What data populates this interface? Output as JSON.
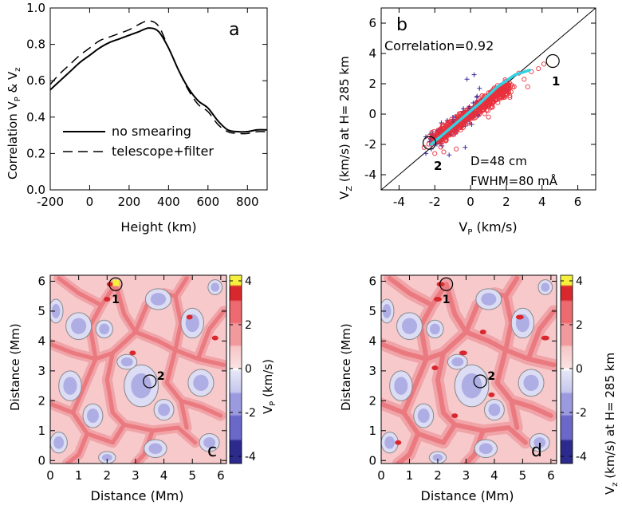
{
  "chart_data": [
    {
      "id": "a",
      "type": "line",
      "panel_label": "a",
      "xlabel": "Height (km)",
      "ylabel_main": "Correlation V",
      "ylabel_sub1": "P",
      "ylabel_mid": " & V",
      "ylabel_sub2": "z",
      "xlim": [
        -200,
        900
      ],
      "ylim": [
        0,
        1.0
      ],
      "xticks": [
        "-200",
        "0",
        "200",
        "400",
        "600",
        "800"
      ],
      "xtick_values": [
        -200,
        0,
        200,
        400,
        600,
        800
      ],
      "yticks": [
        "0.0",
        "0.2",
        "0.4",
        "0.6",
        "0.8",
        "1.0"
      ],
      "ytick_values": [
        0,
        0.2,
        0.4,
        0.6,
        0.8,
        1.0
      ],
      "series": [
        {
          "name": "no smearing",
          "style": "solid",
          "x": [
            -200,
            -150,
            -100,
            -50,
            0,
            50,
            100,
            150,
            200,
            250,
            300,
            350,
            400,
            450,
            500,
            550,
            600,
            650,
            700,
            750,
            800,
            850,
            900
          ],
          "y": [
            0.55,
            0.6,
            0.65,
            0.7,
            0.74,
            0.78,
            0.81,
            0.83,
            0.85,
            0.87,
            0.89,
            0.87,
            0.78,
            0.66,
            0.56,
            0.49,
            0.45,
            0.38,
            0.33,
            0.32,
            0.32,
            0.33,
            0.33
          ]
        },
        {
          "name": "telescope+filter",
          "style": "dashed",
          "x": [
            -200,
            -150,
            -100,
            -50,
            0,
            50,
            100,
            150,
            200,
            250,
            300,
            350,
            400,
            450,
            500,
            550,
            600,
            650,
            700,
            750,
            800,
            850,
            900
          ],
          "y": [
            0.58,
            0.64,
            0.69,
            0.74,
            0.78,
            0.82,
            0.84,
            0.86,
            0.88,
            0.91,
            0.93,
            0.9,
            0.78,
            0.66,
            0.55,
            0.47,
            0.43,
            0.36,
            0.32,
            0.31,
            0.31,
            0.32,
            0.32
          ]
        }
      ],
      "legend": [
        "no smearing",
        "telescope+filter"
      ]
    },
    {
      "id": "b",
      "type": "scatter",
      "panel_label": "b",
      "xlabel_main": "V",
      "xlabel_sub": "P",
      "xlabel_rest": " (km/s)",
      "ylabel_main": "V",
      "ylabel_sub": "Z",
      "ylabel_rest": " (km/s) at H= 285 km",
      "xlim": [
        -5,
        7
      ],
      "ylim": [
        -5,
        7
      ],
      "xticks": [
        "-4",
        "-2",
        "0",
        "2",
        "4",
        "6"
      ],
      "xtick_values": [
        -4,
        -2,
        0,
        2,
        4,
        6
      ],
      "yticks": [
        "-4",
        "-2",
        "0",
        "2",
        "4",
        "6"
      ],
      "ytick_values": [
        -4,
        -2,
        0,
        2,
        4,
        6
      ],
      "correlation_text": "Correlation=0.92",
      "d_text": "D=48 cm",
      "fwhm_text": "FWHM=80 mÅ",
      "points_1_label": "1",
      "points_2_label": "2",
      "marked_points": [
        {
          "label": "1",
          "x": 4.6,
          "y": 3.5
        },
        {
          "label": "2",
          "x": -2.3,
          "y": -1.9
        }
      ],
      "fit_line": {
        "x": [
          -2.2,
          -1.5,
          -0.5,
          0.5,
          1.5,
          2.5,
          3.3
        ],
        "y": [
          -2.0,
          -1.3,
          -0.3,
          0.7,
          1.8,
          2.6,
          2.9
        ]
      },
      "series": [
        {
          "name": "red circles",
          "color": "#e8303c"
        },
        {
          "name": "blue plus",
          "color": "#3a2a9a"
        }
      ],
      "diagonal": [
        [
          -5,
          -5
        ],
        [
          7,
          7
        ]
      ]
    },
    {
      "id": "c",
      "type": "heatmap",
      "panel_label": "c",
      "xlabel": "Distance (Mm)",
      "ylabel": "Distance (Mm)",
      "xlim": [
        0,
        6.2
      ],
      "ylim": [
        -0.1,
        6.2
      ],
      "xticks": [
        "0",
        "1",
        "2",
        "3",
        "4",
        "5",
        "6"
      ],
      "xtick_values": [
        0,
        1,
        2,
        3,
        4,
        5,
        6
      ],
      "yticks": [
        "0",
        "1",
        "2",
        "3",
        "4",
        "5",
        "6"
      ],
      "ytick_values": [
        0,
        1,
        2,
        3,
        4,
        5,
        6
      ],
      "colorbar_title_main": "V",
      "colorbar_title_sub": "P",
      "colorbar_title_rest": " (km/s)",
      "colorbar_ticks": [
        "4",
        "2",
        "0",
        "-2",
        "-4"
      ],
      "colorbar_range": [
        -4,
        4
      ],
      "markers": [
        {
          "label": "1",
          "x": 2.3,
          "y": 5.9
        },
        {
          "label": "2",
          "x": 3.5,
          "y": 2.65
        }
      ]
    },
    {
      "id": "d",
      "type": "heatmap",
      "panel_label": "d",
      "xlabel": "Distance (Mm)",
      "ylabel": "Distance (Mm)",
      "xlim": [
        0,
        6.2
      ],
      "ylim": [
        -0.1,
        6.2
      ],
      "xticks": [
        "0",
        "1",
        "2",
        "3",
        "4",
        "5",
        "6"
      ],
      "xtick_values": [
        0,
        1,
        2,
        3,
        4,
        5,
        6
      ],
      "yticks": [
        "0",
        "1",
        "2",
        "3",
        "4",
        "5",
        "6"
      ],
      "ytick_values": [
        0,
        1,
        2,
        3,
        4,
        5,
        6
      ],
      "colorbar_title_main": "V",
      "colorbar_title_sub": "z",
      "colorbar_title_rest": " (km/s) at H= 285 km",
      "colorbar_ticks": [
        "4",
        "2",
        "0",
        "-2",
        "-4"
      ],
      "colorbar_range": [
        -4,
        4
      ],
      "markers": [
        {
          "label": "1",
          "x": 2.3,
          "y": 5.9
        },
        {
          "label": "2",
          "x": 3.5,
          "y": 2.65
        }
      ]
    }
  ],
  "colors": {
    "fit_line": "#35d0e0",
    "red": "#e8303c",
    "blue": "#3a2a9a",
    "contour": "#8a8a8a",
    "yellow": "#f6f03c"
  }
}
